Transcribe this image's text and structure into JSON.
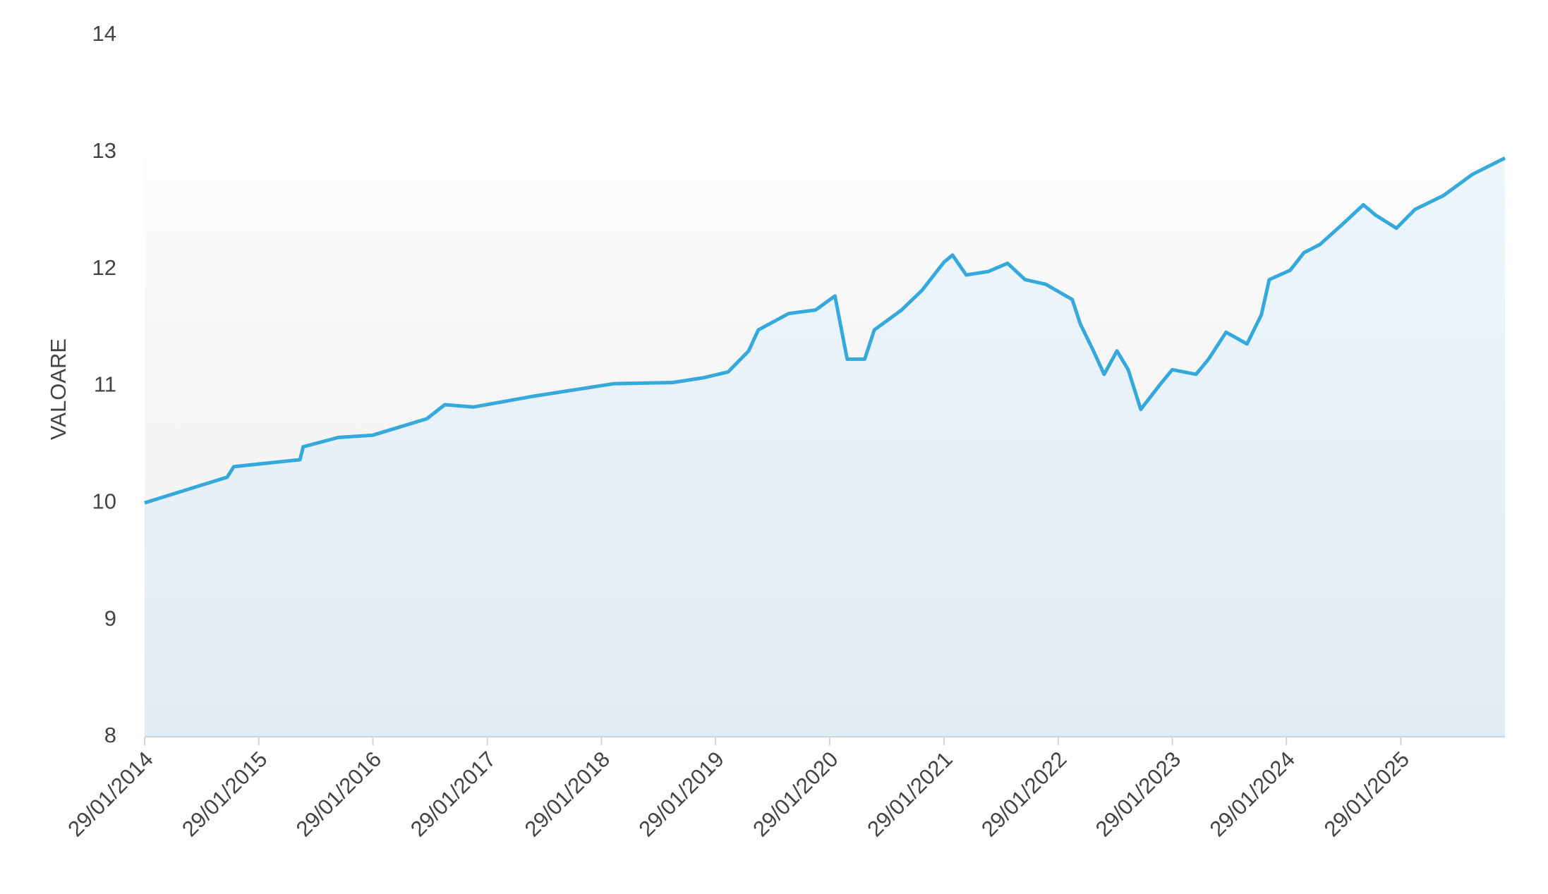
{
  "chart_data": {
    "type": "area",
    "y_label": "VALOARE",
    "x": [
      "29/01/2014",
      "15/07/2014",
      "20/10/2014",
      "10/11/2014",
      "10/06/2015",
      "20/06/2015",
      "10/10/2015",
      "29/01/2016",
      "20/07/2016",
      "15/09/2016",
      "15/12/2016",
      "20/06/2017",
      "10/03/2018",
      "15/09/2018",
      "20/12/2018",
      "10/03/2019",
      "15/05/2019",
      "15/06/2019",
      "20/09/2019",
      "15/12/2019",
      "15/02/2020",
      "25/03/2020",
      "20/05/2020",
      "20/06/2020",
      "15/09/2020",
      "20/11/2020",
      "29/01/2021",
      "25/02/2021",
      "10/04/2021",
      "20/06/2021",
      "20/08/2021",
      "15/10/2021",
      "20/12/2021",
      "15/03/2022",
      "10/04/2022",
      "20/05/2022",
      "25/06/2022",
      "05/08/2022",
      "10/09/2022",
      "20/10/2022",
      "20/12/2022",
      "29/01/2023",
      "15/04/2023",
      "25/05/2023",
      "20/07/2023",
      "25/09/2023",
      "10/11/2023",
      "05/12/2023",
      "10/02/2024",
      "25/03/2024",
      "15/05/2024",
      "25/07/2024",
      "01/10/2024",
      "10/11/2024",
      "15/01/2025",
      "15/03/2025",
      "15/06/2025",
      "15/09/2025",
      "28/12/2025"
    ],
    "series": [
      {
        "name": "VALOARE",
        "color": "#35a9dc",
        "values": [
          10.0,
          10.14,
          10.22,
          10.31,
          10.37,
          10.48,
          10.56,
          10.58,
          10.72,
          10.84,
          10.82,
          10.91,
          11.02,
          11.03,
          11.07,
          11.12,
          11.3,
          11.48,
          11.62,
          11.65,
          11.77,
          11.23,
          11.23,
          11.48,
          11.65,
          11.82,
          12.06,
          12.12,
          11.95,
          11.98,
          12.05,
          11.91,
          11.87,
          11.74,
          11.53,
          11.31,
          11.1,
          11.3,
          11.14,
          10.8,
          11.01,
          11.14,
          11.1,
          11.23,
          11.46,
          11.36,
          11.61,
          11.91,
          11.99,
          12.14,
          12.21,
          12.38,
          12.55,
          12.46,
          12.35,
          12.51,
          12.63,
          12.81,
          12.95
        ]
      }
    ],
    "xlim": [
      "29/01/2014",
      "28/12/2025"
    ],
    "xticks": [
      "29/01/2014",
      "29/01/2015",
      "29/01/2016",
      "29/01/2017",
      "29/01/2018",
      "29/01/2019",
      "29/01/2020",
      "29/01/2021",
      "29/01/2022",
      "29/01/2023",
      "29/01/2024",
      "29/01/2025"
    ],
    "ylim": [
      8,
      14
    ],
    "yticks": [
      8,
      9,
      10,
      11,
      12,
      13,
      14
    ],
    "fill_color": "#e2edf5"
  }
}
